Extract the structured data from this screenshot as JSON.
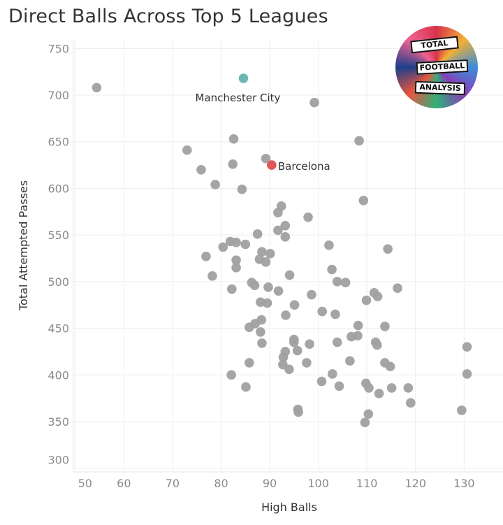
{
  "chart_data": {
    "type": "scatter",
    "title": "Direct Balls Across Top 5 Leagues",
    "xlabel": "High Balls",
    "ylabel": "Total Attempted Passes",
    "xlim": [
      49.6,
      138
    ],
    "ylim": [
      296,
      760
    ],
    "xticks": [
      50,
      60,
      70,
      80,
      90,
      100,
      110,
      120,
      130
    ],
    "yticks": [
      300,
      350,
      400,
      450,
      500,
      550,
      600,
      650,
      700,
      750
    ],
    "grid": true,
    "default_color": "#a0a0a0",
    "highlighted": [
      {
        "label": "Manchester City",
        "x": 84.6,
        "y": 718,
        "color": "#6cb7b3"
      },
      {
        "label": "Barcelona",
        "x": 90.4,
        "y": 625,
        "color": "#e15759"
      }
    ],
    "points": [
      [
        54.4,
        708
      ],
      [
        99.2,
        692
      ],
      [
        82.6,
        653
      ],
      [
        108.4,
        651
      ],
      [
        73.0,
        641
      ],
      [
        89.2,
        632
      ],
      [
        82.4,
        626
      ],
      [
        75.9,
        620
      ],
      [
        78.8,
        604
      ],
      [
        84.3,
        599
      ],
      [
        109.3,
        587
      ],
      [
        92.4,
        581
      ],
      [
        91.7,
        574
      ],
      [
        97.9,
        569
      ],
      [
        93.2,
        560
      ],
      [
        91.7,
        555
      ],
      [
        93.2,
        548
      ],
      [
        87.5,
        551
      ],
      [
        81.9,
        543
      ],
      [
        83.1,
        542
      ],
      [
        85.0,
        540
      ],
      [
        80.4,
        537
      ],
      [
        102.2,
        539
      ],
      [
        114.3,
        535
      ],
      [
        76.9,
        527
      ],
      [
        88.4,
        532
      ],
      [
        90.1,
        530
      ],
      [
        87.9,
        524
      ],
      [
        89.2,
        521
      ],
      [
        83.1,
        523
      ],
      [
        83.1,
        515
      ],
      [
        102.8,
        513
      ],
      [
        94.1,
        507
      ],
      [
        78.2,
        506
      ],
      [
        86.3,
        499
      ],
      [
        86.9,
        496
      ],
      [
        82.2,
        492
      ],
      [
        89.7,
        494
      ],
      [
        91.8,
        490
      ],
      [
        98.6,
        486
      ],
      [
        103.9,
        500
      ],
      [
        105.6,
        499
      ],
      [
        116.3,
        493
      ],
      [
        111.5,
        488
      ],
      [
        112.2,
        484
      ],
      [
        109.9,
        480
      ],
      [
        88.1,
        478
      ],
      [
        89.5,
        477
      ],
      [
        95.1,
        475
      ],
      [
        100.8,
        468
      ],
      [
        103.5,
        465
      ],
      [
        93.3,
        464
      ],
      [
        88.3,
        459
      ],
      [
        87.0,
        455
      ],
      [
        85.8,
        451
      ],
      [
        108.2,
        453
      ],
      [
        113.7,
        452
      ],
      [
        88.1,
        446
      ],
      [
        106.8,
        441
      ],
      [
        108.1,
        442
      ],
      [
        88.4,
        434
      ],
      [
        95.0,
        438
      ],
      [
        95.0,
        435
      ],
      [
        98.2,
        433
      ],
      [
        103.9,
        435
      ],
      [
        111.8,
        435
      ],
      [
        112.1,
        432
      ],
      [
        130.6,
        430
      ],
      [
        93.2,
        425
      ],
      [
        95.7,
        426
      ],
      [
        92.8,
        419
      ],
      [
        106.5,
        415
      ],
      [
        85.8,
        413
      ],
      [
        92.7,
        411
      ],
      [
        97.6,
        413
      ],
      [
        113.7,
        413
      ],
      [
        114.8,
        409
      ],
      [
        94.0,
        406
      ],
      [
        102.9,
        401
      ],
      [
        82.1,
        400
      ],
      [
        130.6,
        401
      ],
      [
        100.7,
        393
      ],
      [
        109.8,
        391
      ],
      [
        104.3,
        388
      ],
      [
        110.4,
        386
      ],
      [
        85.1,
        387
      ],
      [
        115.1,
        386
      ],
      [
        118.5,
        386
      ],
      [
        112.5,
        380
      ],
      [
        119.0,
        370
      ],
      [
        95.8,
        363
      ],
      [
        95.9,
        360
      ],
      [
        129.5,
        362
      ],
      [
        110.3,
        358
      ],
      [
        109.6,
        349
      ]
    ]
  },
  "logo": {
    "lines": [
      "TOTAL",
      "FOOTBALL",
      "ANALYSIS"
    ]
  }
}
